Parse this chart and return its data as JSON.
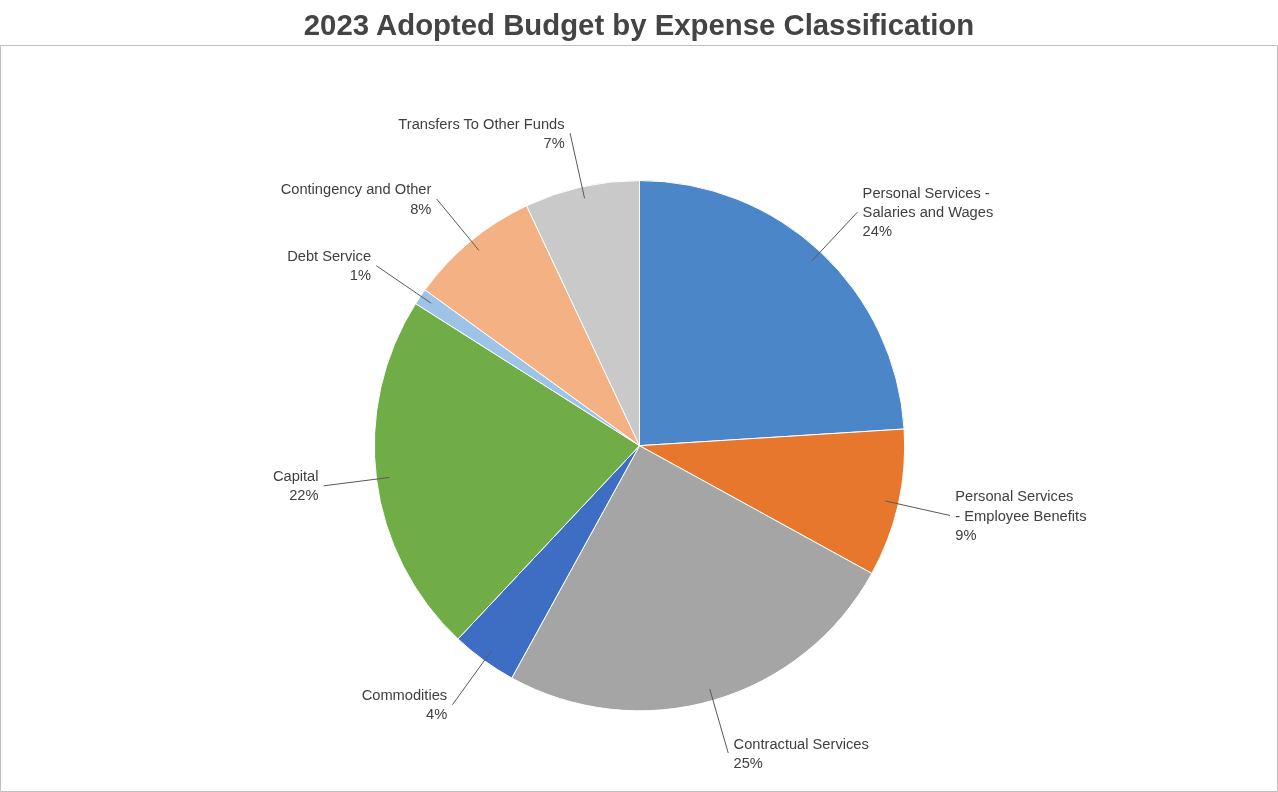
{
  "chart_data": {
    "type": "pie",
    "title": "2023 Adopted Budget by Expense Classification",
    "categories": [
      "Personal Services - Salaries and Wages",
      "Personal Services - Employee Benefits",
      "Contractual Services",
      "Commodities",
      "Capital",
      "Debt Service",
      "Contingency and Other",
      "Transfers To Other Funds"
    ],
    "values": [
      24,
      9,
      25,
      4,
      22,
      1,
      8,
      7
    ],
    "colors": [
      "#4a86c8",
      "#e8772e",
      "#a5a5a5",
      "#3d6ec4",
      "#70ad47",
      "#9dc3e6",
      "#f4b183",
      "#c9c9c9"
    ],
    "value_labels": [
      "24%",
      "9%",
      "25%",
      "4%",
      "22%",
      "1%",
      "8%",
      "7%"
    ]
  }
}
